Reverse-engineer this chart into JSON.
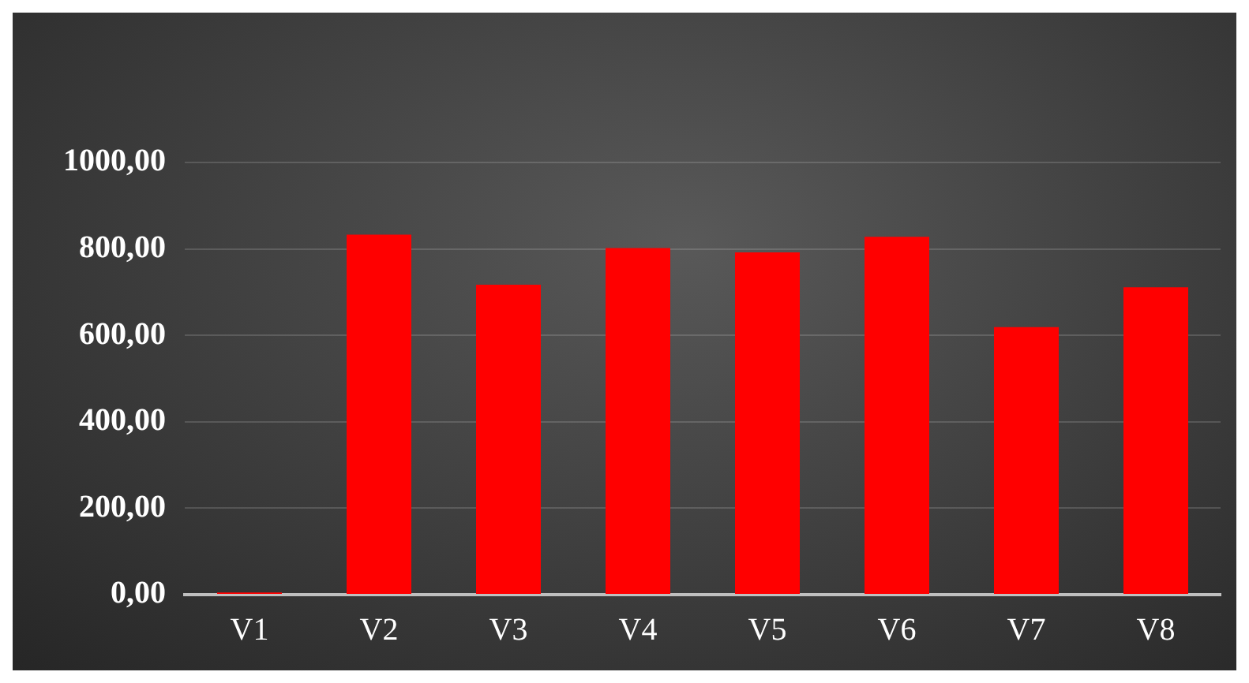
{
  "chart_data": {
    "type": "bar",
    "categories": [
      "V1",
      "V2",
      "V3",
      "V4",
      "V5",
      "V6",
      "V7",
      "V8"
    ],
    "values": [
      5,
      833,
      717,
      802,
      792,
      828,
      619,
      711
    ],
    "color": "#ff0000",
    "ylim": [
      0,
      1000
    ],
    "yticks": [
      {
        "value": 0,
        "label": "0,00"
      },
      {
        "value": 200,
        "label": "200,00"
      },
      {
        "value": 400,
        "label": "400,00"
      },
      {
        "value": 600,
        "label": "600,00"
      },
      {
        "value": 800,
        "label": "800,00"
      },
      {
        "value": 1000,
        "label": "1000,00"
      }
    ],
    "grid": "y"
  }
}
